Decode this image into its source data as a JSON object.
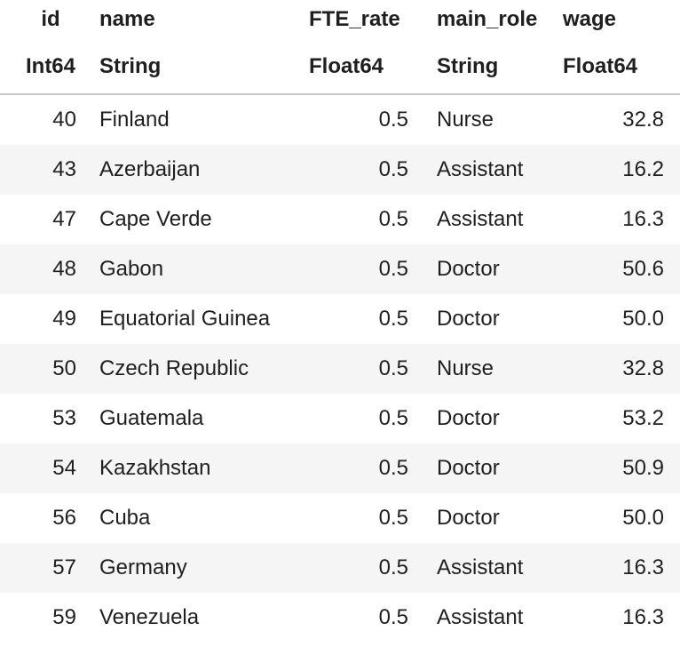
{
  "table": {
    "columns": [
      {
        "name": "id",
        "dtype": "Int64"
      },
      {
        "name": "name",
        "dtype": "String"
      },
      {
        "name": "FTE_rate",
        "dtype": "Float64"
      },
      {
        "name": "main_role",
        "dtype": "String"
      },
      {
        "name": "wage",
        "dtype": "Float64"
      }
    ],
    "rows": [
      [
        "40",
        "Finland",
        "0.5",
        "Nurse",
        "32.8"
      ],
      [
        "43",
        "Azerbaijan",
        "0.5",
        "Assistant",
        "16.2"
      ],
      [
        "47",
        "Cape Verde",
        "0.5",
        "Assistant",
        "16.3"
      ],
      [
        "48",
        "Gabon",
        "0.5",
        "Doctor",
        "50.6"
      ],
      [
        "49",
        "Equatorial Guinea",
        "0.5",
        "Doctor",
        "50.0"
      ],
      [
        "50",
        "Czech Republic",
        "0.5",
        "Nurse",
        "32.8"
      ],
      [
        "53",
        "Guatemala",
        "0.5",
        "Doctor",
        "53.2"
      ],
      [
        "54",
        "Kazakhstan",
        "0.5",
        "Doctor",
        "50.9"
      ],
      [
        "56",
        "Cuba",
        "0.5",
        "Doctor",
        "50.0"
      ],
      [
        "57",
        "Germany",
        "0.5",
        "Assistant",
        "16.3"
      ],
      [
        "59",
        "Venezuela",
        "0.5",
        "Assistant",
        "16.3"
      ]
    ]
  }
}
